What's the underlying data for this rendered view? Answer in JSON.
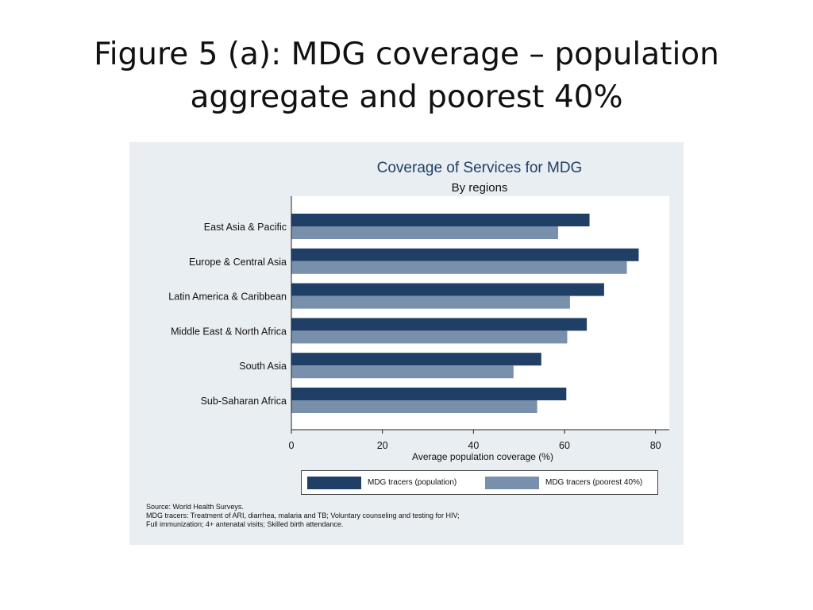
{
  "slide": {
    "title_line1": "Figure 5 (a): MDG coverage – population",
    "title_line2": "aggregate and poorest 40%"
  },
  "colors": {
    "population": "#1f3f66",
    "poorest": "#7890ab",
    "title": "#1f3f66",
    "panel_bg": "#e9eef2"
  },
  "chart_data": {
    "type": "bar",
    "orientation": "horizontal",
    "title": "Coverage of Services for MDG",
    "subtitle": "By regions",
    "xlabel": "Average population coverage (%)",
    "ylabel": "",
    "xlim": [
      0,
      83
    ],
    "xticks": [
      0,
      20,
      40,
      60,
      80
    ],
    "grid": false,
    "legend_position": "bottom",
    "categories": [
      "East Asia & Pacific",
      "Europe & Central Asia",
      "Latin America & Caribbean",
      "Middle East & North Africa",
      "South Asia",
      "Sub-Saharan Africa"
    ],
    "series": [
      {
        "name": "MDG tracers (population)",
        "values": [
          65.5,
          76.3,
          68.7,
          64.9,
          54.9,
          60.4
        ]
      },
      {
        "name": "MDG tracers (poorest 40%)",
        "values": [
          58.6,
          73.7,
          61.2,
          60.6,
          48.8,
          54.0
        ]
      }
    ]
  },
  "notes": {
    "line1": "Source: World Health Surveys.",
    "line2": "MDG tracers: Treatment of ARI, diarrhea, malaria and TB; Voluntary counseling and testing for HIV;",
    "line3": "Full immunization; 4+ antenatal visits; Skilled birth attendance."
  }
}
